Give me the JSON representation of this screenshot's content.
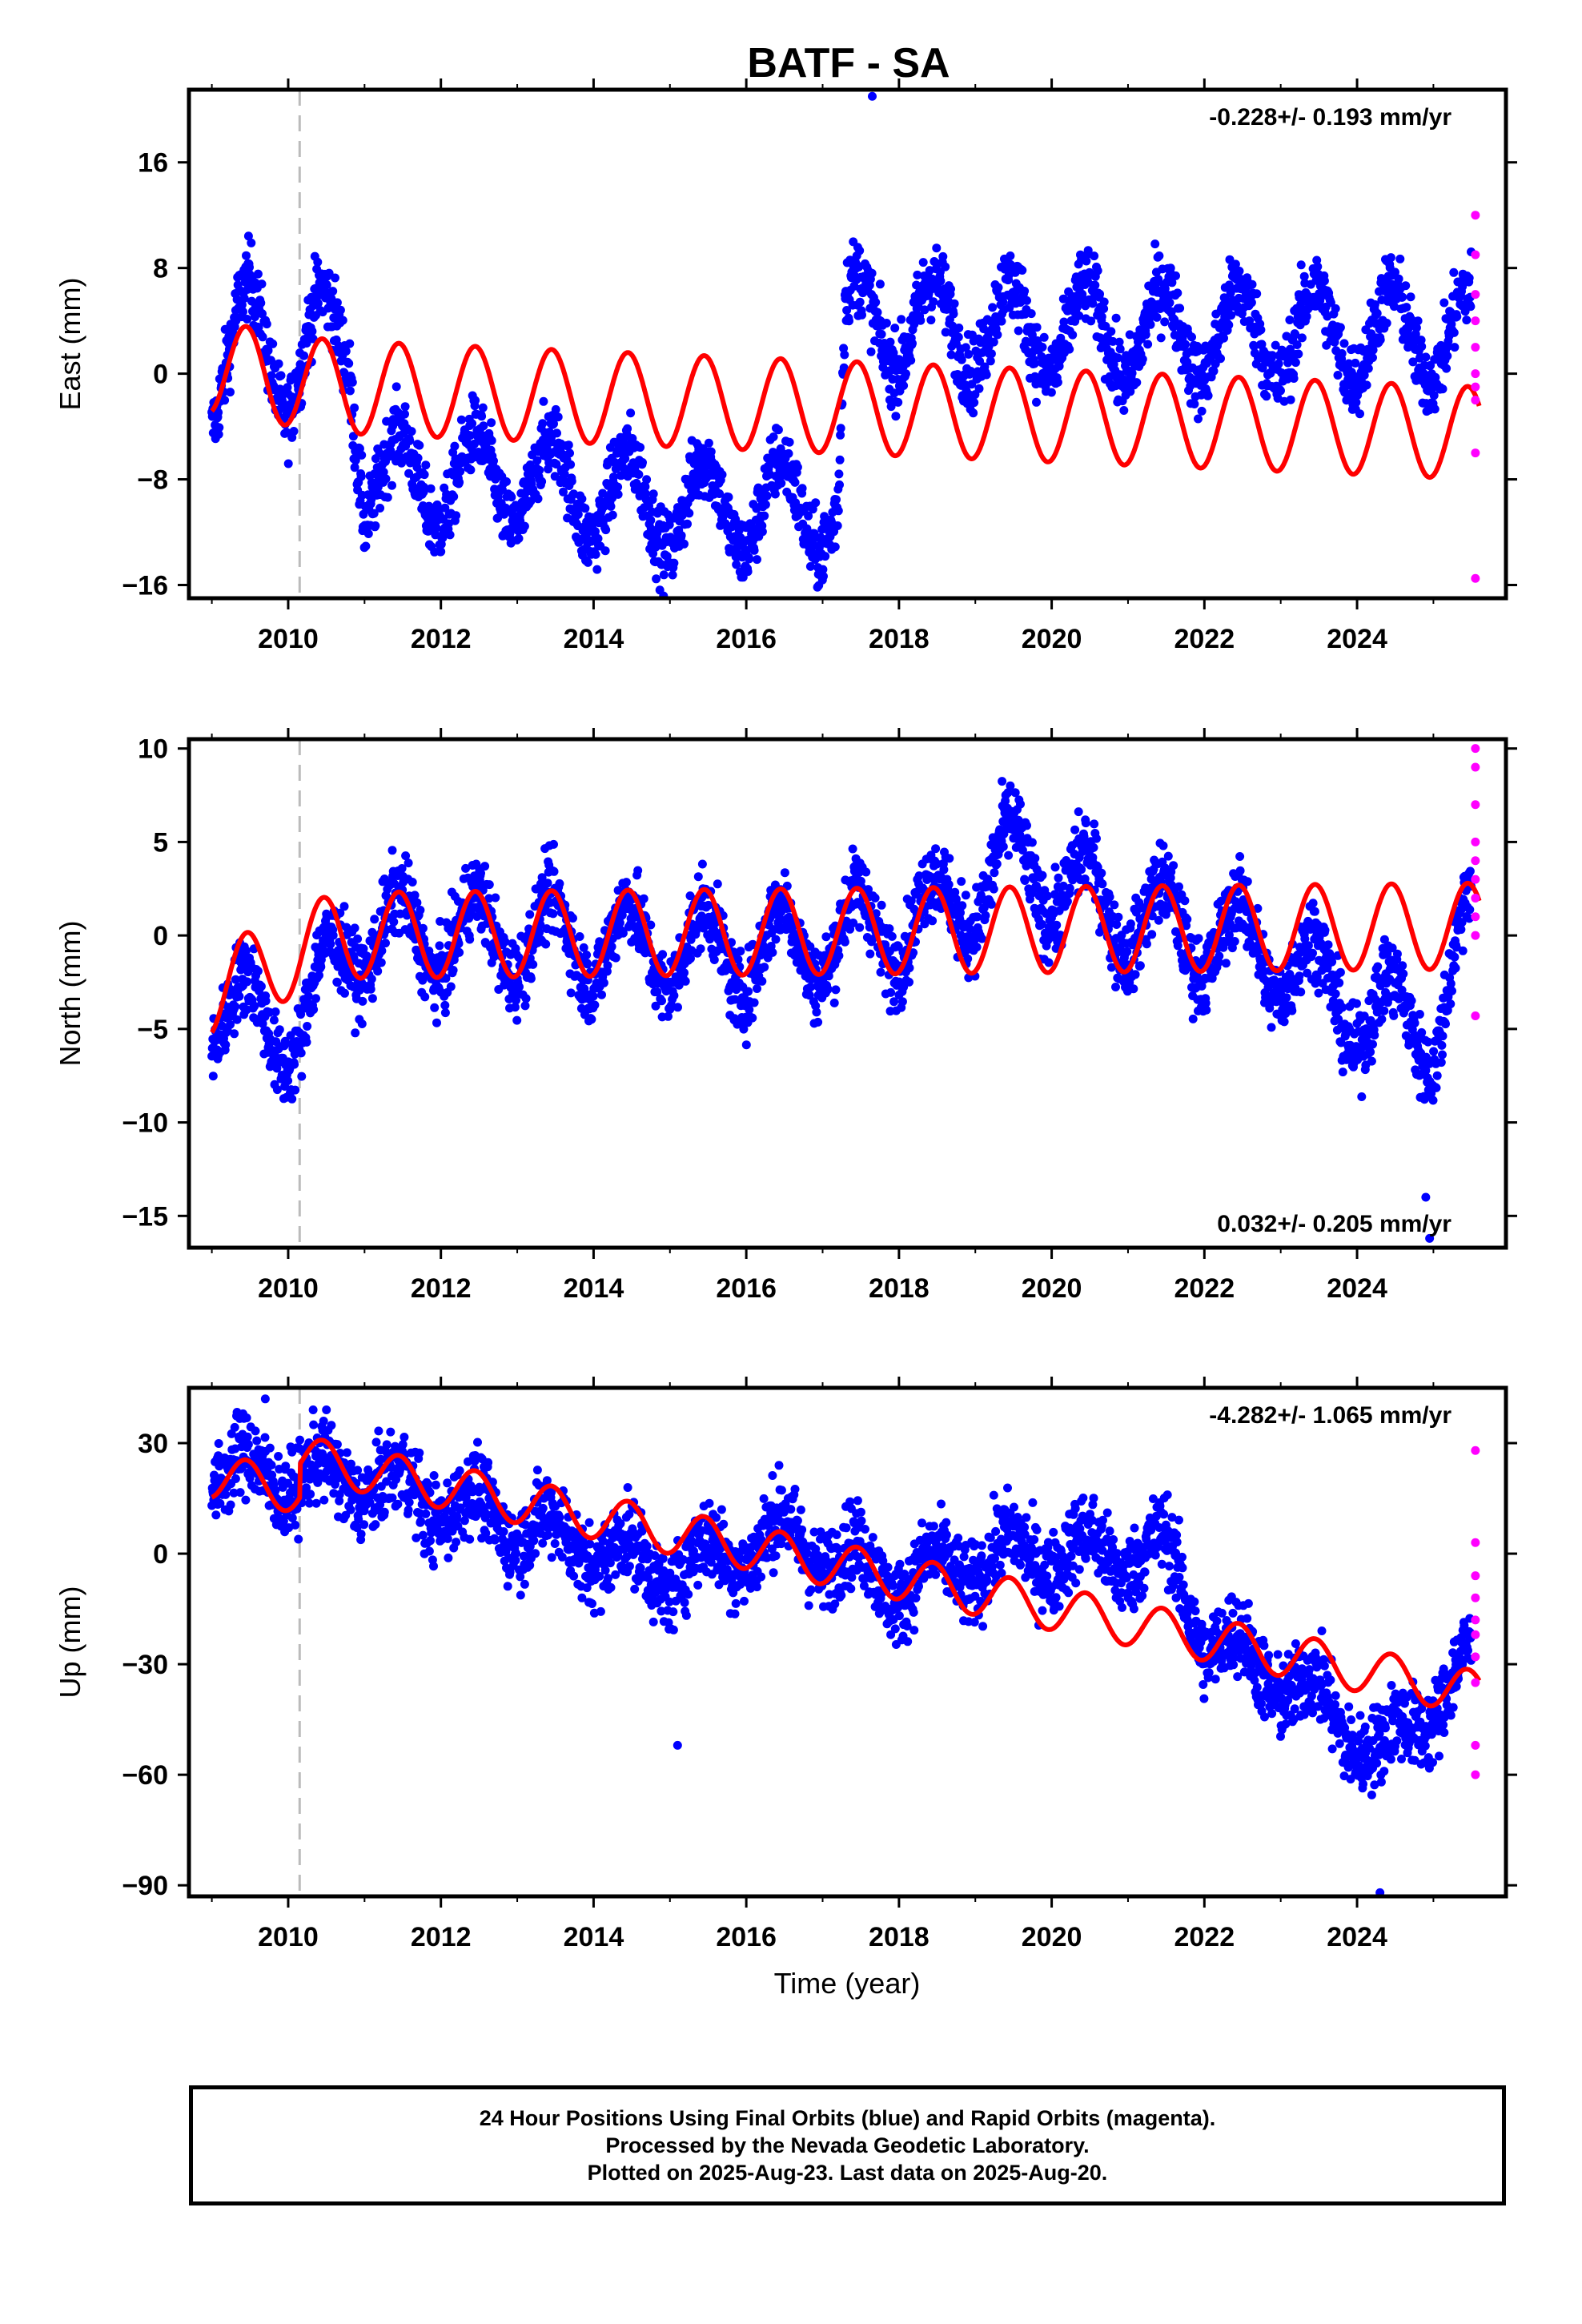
{
  "title": "BATF - SA",
  "xlabel": "Time (year)",
  "caption": {
    "line1": "24 Hour Positions Using Final Orbits (blue) and Rapid Orbits (magenta).",
    "line2": "Processed by the Nevada Geodetic Laboratory.",
    "line3": "Plotted on 2025-Aug-23. Last data on 2025-Aug-20."
  },
  "colors": {
    "final_orbits": "#0000ff",
    "rapid_orbits": "#ff00ff",
    "model_fit": "#ff0000",
    "event_line": "#bbbbbb"
  },
  "chart_data": [
    {
      "type": "scatter",
      "name": "east",
      "ylabel": "East (mm)",
      "rate_label": "-0.228+/- 0.193 mm/yr",
      "rate_position": "top-right",
      "xlim": [
        2008.7,
        2025.95
      ],
      "ylim": [
        -17,
        21.5
      ],
      "yticks": [
        -16,
        -8,
        0,
        8,
        16
      ],
      "xticks": [
        2010,
        2012,
        2014,
        2016,
        2018,
        2020,
        2022,
        2024
      ],
      "event_line_x": 2010.15,
      "series": [
        {
          "name": "Final Orbits",
          "color": "#0000ff",
          "trend": [
            [
              2009.0,
              -1
            ],
            [
              2009.5,
              4
            ],
            [
              2010.0,
              0
            ],
            [
              2010.4,
              3
            ],
            [
              2010.8,
              2
            ],
            [
              2011.0,
              -8
            ],
            [
              2013.0,
              -8
            ],
            [
              2015.0,
              -10
            ],
            [
              2017.2,
              -10
            ],
            [
              2017.3,
              4
            ],
            [
              2021.0,
              3
            ],
            [
              2025.5,
              3
            ]
          ],
          "seasonal_amplitude": 3.5,
          "scatter": 2
        },
        {
          "name": "Rapid Orbits",
          "color": "#ff00ff",
          "points": [
            [
              2025.55,
              12
            ],
            [
              2025.55,
              9
            ],
            [
              2025.55,
              6
            ],
            [
              2025.55,
              4
            ],
            [
              2025.55,
              2
            ],
            [
              2025.55,
              0
            ],
            [
              2025.55,
              -1
            ],
            [
              2025.55,
              -2
            ],
            [
              2025.55,
              -6
            ],
            [
              2025.55,
              -15.5
            ]
          ]
        },
        {
          "name": "Model",
          "color": "#ff0000",
          "trend": [
            [
              2009.0,
              0.5
            ],
            [
              2010.6,
              -1
            ],
            [
              2025.6,
              -4.5
            ]
          ],
          "seasonal_amplitude": 3.5
        }
      ],
      "outliers": [
        [
          2017.65,
          21
        ]
      ]
    },
    {
      "type": "scatter",
      "name": "north",
      "ylabel": "North (mm)",
      "rate_label": "0.032+/- 0.205 mm/yr",
      "rate_position": "bottom-right",
      "xlim": [
        2008.7,
        2025.95
      ],
      "ylim": [
        -16.7,
        10.5
      ],
      "yticks": [
        -15,
        -10,
        -5,
        0,
        5,
        10
      ],
      "xticks": [
        2010,
        2012,
        2014,
        2016,
        2018,
        2020,
        2022,
        2024
      ],
      "event_line_x": 2010.15,
      "series": [
        {
          "name": "Final Orbits",
          "color": "#0000ff",
          "trend": [
            [
              2009.0,
              -4
            ],
            [
              2010.2,
              -5
            ],
            [
              2010.8,
              0
            ],
            [
              2013.0,
              0
            ],
            [
              2016.0,
              -1
            ],
            [
              2018.5,
              1
            ],
            [
              2019.5,
              4
            ],
            [
              2021.0,
              1
            ],
            [
              2023.0,
              -1
            ],
            [
              2024.0,
              -4
            ],
            [
              2025.0,
              -5
            ],
            [
              2025.5,
              1
            ]
          ],
          "seasonal_amplitude": 2.3,
          "scatter": 1.5
        },
        {
          "name": "Rapid Orbits",
          "color": "#ff00ff",
          "points": [
            [
              2025.55,
              10
            ],
            [
              2025.55,
              9
            ],
            [
              2025.55,
              7
            ],
            [
              2025.55,
              5
            ],
            [
              2025.55,
              4
            ],
            [
              2025.55,
              3
            ],
            [
              2025.55,
              2
            ],
            [
              2025.55,
              1
            ],
            [
              2025.55,
              0
            ],
            [
              2025.55,
              -4.3
            ]
          ]
        },
        {
          "name": "Model",
          "color": "#ff0000",
          "trend": [
            [
              2009.0,
              -3
            ],
            [
              2010.6,
              0
            ],
            [
              2025.6,
              0.5
            ]
          ],
          "seasonal_amplitude": 2.3
        }
      ],
      "outliers": [
        [
          2024.95,
          -16.2
        ],
        [
          2024.9,
          -14
        ]
      ]
    },
    {
      "type": "scatter",
      "name": "up",
      "ylabel": "Up (mm)",
      "rate_label": "-4.282+/- 1.065 mm/yr",
      "rate_position": "top-right",
      "xlim": [
        2008.7,
        2025.95
      ],
      "ylim": [
        -93,
        45
      ],
      "yticks": [
        -90,
        -60,
        -30,
        0,
        30
      ],
      "xticks": [
        2010,
        2012,
        2014,
        2016,
        2018,
        2020,
        2022,
        2024
      ],
      "xlabel_shown": true,
      "event_line_x": 2010.15,
      "series": [
        {
          "name": "Final Orbits",
          "color": "#0000ff",
          "trend": [
            [
              2009.0,
              22
            ],
            [
              2011.0,
              20
            ],
            [
              2013.0,
              8
            ],
            [
              2015.0,
              -5
            ],
            [
              2016.5,
              5
            ],
            [
              2018.0,
              -8
            ],
            [
              2019.5,
              0
            ],
            [
              2021.5,
              0
            ],
            [
              2022.0,
              -22
            ],
            [
              2023.5,
              -40
            ],
            [
              2024.3,
              -55
            ],
            [
              2025.5,
              -30
            ]
          ],
          "seasonal_amplitude": 6,
          "scatter": 8
        },
        {
          "name": "Rapid Orbits",
          "color": "#ff00ff",
          "points": [
            [
              2025.55,
              28
            ],
            [
              2025.55,
              3
            ],
            [
              2025.55,
              -6
            ],
            [
              2025.55,
              -12
            ],
            [
              2025.55,
              -18
            ],
            [
              2025.55,
              -22
            ],
            [
              2025.55,
              -28
            ],
            [
              2025.55,
              -35
            ],
            [
              2025.55,
              -52
            ],
            [
              2025.55,
              -60
            ]
          ]
        },
        {
          "name": "Model",
          "color": "#ff0000",
          "trend": [
            [
              2009.0,
              21
            ],
            [
              2010.15,
              17
            ],
            [
              2010.16,
              26
            ],
            [
              2025.6,
              -38
            ]
          ],
          "seasonal_amplitude": 6
        }
      ],
      "outliers": [
        [
          2024.3,
          -92
        ],
        [
          2015.1,
          -52
        ],
        [
          2009.7,
          42
        ]
      ]
    }
  ]
}
